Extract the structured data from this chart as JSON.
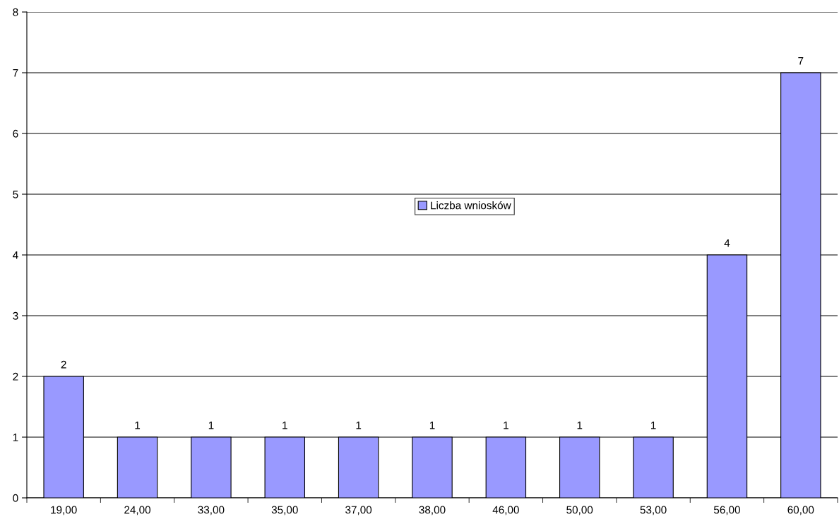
{
  "chart_data": {
    "type": "bar",
    "categories": [
      "19,00",
      "24,00",
      "33,00",
      "35,00",
      "37,00",
      "38,00",
      "46,00",
      "50,00",
      "53,00",
      "56,00",
      "60,00"
    ],
    "series": [
      {
        "name": "Liczba wniosków",
        "color": "#9999ff",
        "values": [
          2,
          1,
          1,
          1,
          1,
          1,
          1,
          1,
          1,
          4,
          7
        ]
      }
    ],
    "ylim": [
      0,
      8
    ],
    "yticks": [
      0,
      1,
      2,
      3,
      4,
      5,
      6,
      7,
      8
    ],
    "grid": "y",
    "legend": "center",
    "data_labels": true
  }
}
